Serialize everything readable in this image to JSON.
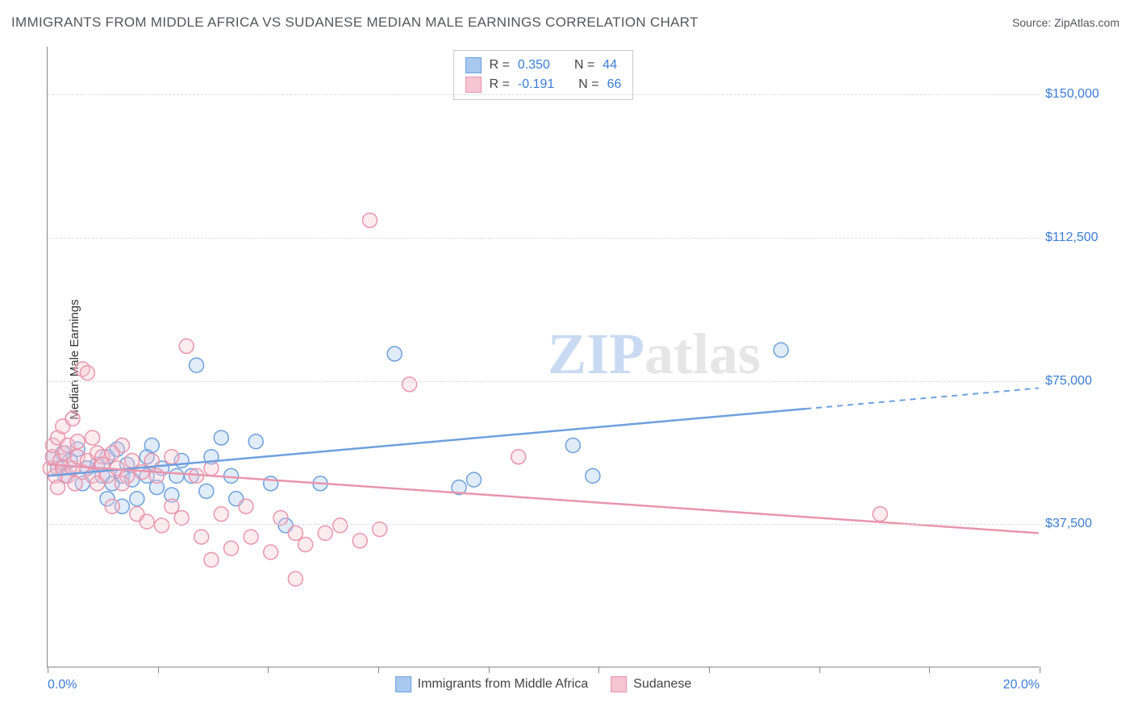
{
  "title": "IMMIGRANTS FROM MIDDLE AFRICA VS SUDANESE MEDIAN MALE EARNINGS CORRELATION CHART",
  "source": "Source: ZipAtlas.com",
  "ylabel": "Median Male Earnings",
  "watermark": {
    "part1": "ZIP",
    "part2": "atlas"
  },
  "chart": {
    "type": "scatter",
    "xlim": [
      0,
      20
    ],
    "ylim": [
      0,
      162500
    ],
    "x_tick_positions": [
      0,
      2.22,
      4.44,
      6.67,
      8.89,
      11.11,
      13.33,
      15.56,
      17.78,
      20
    ],
    "x_tick_labels_shown": {
      "0": "0.0%",
      "20": "20.0%"
    },
    "y_grid": [
      37500,
      75000,
      112500,
      150000
    ],
    "y_tick_labels": {
      "37500": "$37,500",
      "75000": "$75,000",
      "112500": "$112,500",
      "150000": "$150,000"
    },
    "background_color": "#ffffff",
    "grid_color": "#dcdcdc",
    "axis_color": "#888888",
    "marker_radius": 9,
    "marker_stroke_width": 1.5,
    "marker_fill_opacity": 0.35,
    "series": [
      {
        "name": "Immigrants from Middle Africa",
        "color_fill": "#a9c8ef",
        "color_stroke": "#6ea0de",
        "R": "0.350",
        "N": "44",
        "trend": {
          "y_at_x0": 50000,
          "y_at_x20": 73000,
          "solid_until_x": 15.3
        },
        "points": [
          [
            0.1,
            55000
          ],
          [
            0.2,
            52000
          ],
          [
            0.3,
            56000
          ],
          [
            0.35,
            50000
          ],
          [
            0.45,
            54000
          ],
          [
            0.6,
            57000
          ],
          [
            0.7,
            48000
          ],
          [
            0.8,
            52000
          ],
          [
            1.0,
            53000
          ],
          [
            1.1,
            50000
          ],
          [
            1.2,
            44000
          ],
          [
            1.2,
            55000
          ],
          [
            1.3,
            48000
          ],
          [
            1.4,
            57000
          ],
          [
            1.5,
            50000
          ],
          [
            1.5,
            42000
          ],
          [
            1.6,
            53000
          ],
          [
            1.7,
            49000
          ],
          [
            1.8,
            44000
          ],
          [
            2.0,
            55000
          ],
          [
            2.0,
            50000
          ],
          [
            2.1,
            58000
          ],
          [
            2.2,
            47000
          ],
          [
            2.3,
            52000
          ],
          [
            2.5,
            45000
          ],
          [
            2.6,
            50000
          ],
          [
            2.7,
            54000
          ],
          [
            3.0,
            79000
          ],
          [
            3.2,
            46000
          ],
          [
            3.3,
            55000
          ],
          [
            3.5,
            60000
          ],
          [
            3.7,
            50000
          ],
          [
            3.8,
            44000
          ],
          [
            4.2,
            59000
          ],
          [
            4.5,
            48000
          ],
          [
            4.8,
            37000
          ],
          [
            5.5,
            48000
          ],
          [
            7.0,
            82000
          ],
          [
            8.3,
            47000
          ],
          [
            8.6,
            49000
          ],
          [
            10.6,
            58000
          ],
          [
            11.0,
            50000
          ],
          [
            14.8,
            83000
          ],
          [
            2.9,
            50000
          ]
        ]
      },
      {
        "name": "Sudanese",
        "color_fill": "#f5c5d2",
        "color_stroke": "#e995ad",
        "R": "-0.191",
        "N": "66",
        "trend": {
          "y_at_x0": 53000,
          "y_at_x20": 35000,
          "solid_until_x": 20
        },
        "points": [
          [
            0.05,
            52000
          ],
          [
            0.1,
            55000
          ],
          [
            0.1,
            58000
          ],
          [
            0.15,
            50000
          ],
          [
            0.2,
            60000
          ],
          [
            0.2,
            47000
          ],
          [
            0.25,
            54000
          ],
          [
            0.3,
            63000
          ],
          [
            0.3,
            52000
          ],
          [
            0.35,
            56000
          ],
          [
            0.4,
            50000
          ],
          [
            0.4,
            58000
          ],
          [
            0.5,
            65000
          ],
          [
            0.5,
            52000
          ],
          [
            0.55,
            48000
          ],
          [
            0.6,
            55000
          ],
          [
            0.6,
            59000
          ],
          [
            0.7,
            51000
          ],
          [
            0.7,
            78000
          ],
          [
            0.8,
            54000
          ],
          [
            0.8,
            77000
          ],
          [
            0.9,
            60000
          ],
          [
            0.9,
            50000
          ],
          [
            1.0,
            56000
          ],
          [
            1.0,
            48000
          ],
          [
            1.1,
            55000
          ],
          [
            1.1,
            53000
          ],
          [
            1.2,
            50000
          ],
          [
            1.3,
            56000
          ],
          [
            1.3,
            42000
          ],
          [
            1.4,
            52000
          ],
          [
            1.5,
            58000
          ],
          [
            1.6,
            50000
          ],
          [
            1.7,
            54000
          ],
          [
            1.8,
            40000
          ],
          [
            1.9,
            51000
          ],
          [
            2.0,
            38000
          ],
          [
            2.1,
            54000
          ],
          [
            2.2,
            50000
          ],
          [
            2.3,
            37000
          ],
          [
            2.5,
            55000
          ],
          [
            2.5,
            42000
          ],
          [
            2.7,
            39000
          ],
          [
            2.8,
            84000
          ],
          [
            3.0,
            50000
          ],
          [
            3.1,
            34000
          ],
          [
            3.3,
            52000
          ],
          [
            3.3,
            28000
          ],
          [
            3.5,
            40000
          ],
          [
            3.7,
            31000
          ],
          [
            4.0,
            42000
          ],
          [
            4.1,
            34000
          ],
          [
            4.5,
            30000
          ],
          [
            4.7,
            39000
          ],
          [
            5.0,
            35000
          ],
          [
            5.0,
            23000
          ],
          [
            5.2,
            32000
          ],
          [
            5.6,
            35000
          ],
          [
            5.9,
            37000
          ],
          [
            6.3,
            33000
          ],
          [
            6.5,
            117000
          ],
          [
            6.7,
            36000
          ],
          [
            7.3,
            74000
          ],
          [
            9.5,
            55000
          ],
          [
            16.8,
            40000
          ],
          [
            1.5,
            48000
          ]
        ]
      }
    ],
    "stat_legend_labels": {
      "r_prefix": "R = ",
      "n_prefix": "N = "
    }
  }
}
